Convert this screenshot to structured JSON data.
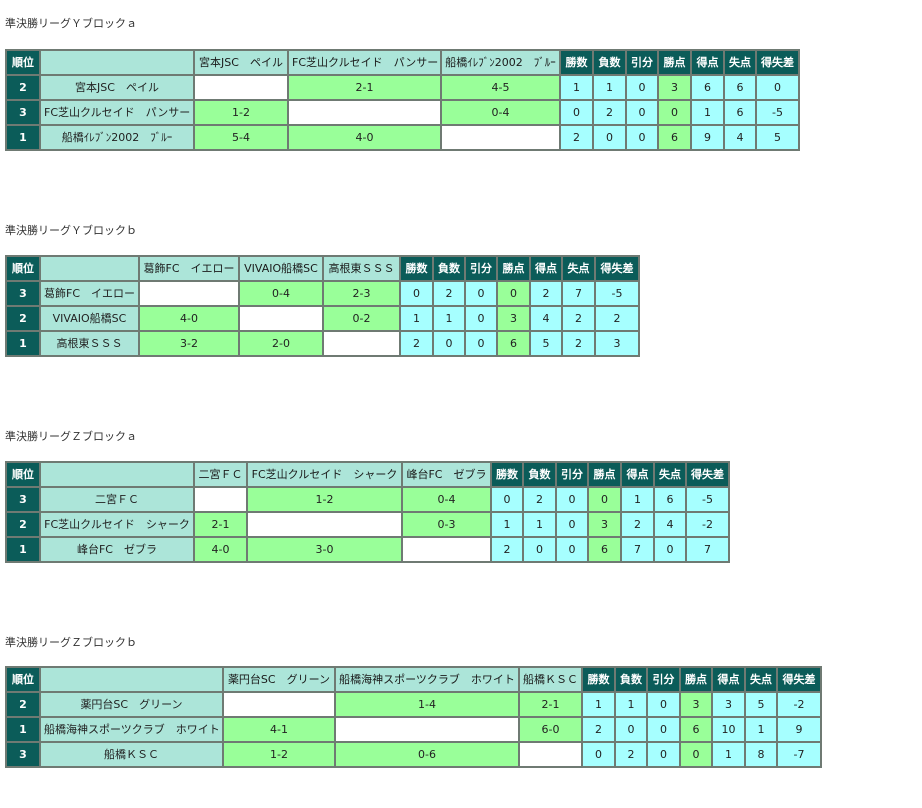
{
  "stat_headers": [
    "勝数",
    "負数",
    "引分",
    "勝点",
    "得点",
    "失点",
    "得失差"
  ],
  "rank_header": "順位",
  "blocks": [
    {
      "title": "準決勝リーグＹブロックａ",
      "teams": [
        "宮本JSC　ペイル",
        "FC芝山クルセイド　パンサー",
        "船橋ｲﾚﾌﾞﾝ2002　ﾌﾞﾙｰ"
      ],
      "rows": [
        {
          "rank": "2",
          "name": "宮本JSC　ペイル",
          "results": [
            "",
            "2-1",
            "4-5"
          ],
          "stats": [
            "1",
            "1",
            "0",
            "3",
            "6",
            "6",
            "0"
          ]
        },
        {
          "rank": "3",
          "name": "FC芝山クルセイド　パンサー",
          "results": [
            "1-2",
            "",
            "0-4"
          ],
          "stats": [
            "0",
            "2",
            "0",
            "0",
            "1",
            "6",
            "-5"
          ]
        },
        {
          "rank": "1",
          "name": "船橋ｲﾚﾌﾞﾝ2002　ﾌﾞﾙｰ",
          "results": [
            "5-4",
            "4-0",
            ""
          ],
          "stats": [
            "2",
            "0",
            "0",
            "6",
            "9",
            "4",
            "5"
          ]
        }
      ]
    },
    {
      "title": "準決勝リーグＹブロックｂ",
      "teams": [
        "葛飾FC　イエロー",
        "VIVAIO船橋SC",
        "高根東ＳＳＳ"
      ],
      "rows": [
        {
          "rank": "3",
          "name": "葛飾FC　イエロー",
          "results": [
            "",
            "0-4",
            "2-3"
          ],
          "stats": [
            "0",
            "2",
            "0",
            "0",
            "2",
            "7",
            "-5"
          ]
        },
        {
          "rank": "2",
          "name": "VIVAIO船橋SC",
          "results": [
            "4-0",
            "",
            "0-2"
          ],
          "stats": [
            "1",
            "1",
            "0",
            "3",
            "4",
            "2",
            "2"
          ]
        },
        {
          "rank": "1",
          "name": "高根東ＳＳＳ",
          "results": [
            "3-2",
            "2-0",
            ""
          ],
          "stats": [
            "2",
            "0",
            "0",
            "6",
            "5",
            "2",
            "3"
          ]
        }
      ]
    },
    {
      "title": "準決勝リーグＺブロックａ",
      "teams": [
        "二宮ＦＣ",
        "FC芝山クルセイド　シャーク",
        "峰台FC　ゼブラ"
      ],
      "rows": [
        {
          "rank": "3",
          "name": "二宮ＦＣ",
          "results": [
            "",
            "1-2",
            "0-4"
          ],
          "stats": [
            "0",
            "2",
            "0",
            "0",
            "1",
            "6",
            "-5"
          ]
        },
        {
          "rank": "2",
          "name": "FC芝山クルセイド　シャーク",
          "results": [
            "2-1",
            "",
            "0-3"
          ],
          "stats": [
            "1",
            "1",
            "0",
            "3",
            "2",
            "4",
            "-2"
          ]
        },
        {
          "rank": "1",
          "name": "峰台FC　ゼブラ",
          "results": [
            "4-0",
            "3-0",
            ""
          ],
          "stats": [
            "2",
            "0",
            "0",
            "6",
            "7",
            "0",
            "7"
          ]
        }
      ]
    },
    {
      "title": "準決勝リーグＺブロックｂ",
      "teams": [
        "薬円台SC　グリーン",
        "船橋海神スポーツクラブ　ホワイト",
        "船橋ＫＳＣ"
      ],
      "rows": [
        {
          "rank": "2",
          "name": "薬円台SC　グリーン",
          "results": [
            "",
            "1-4",
            "2-1"
          ],
          "stats": [
            "1",
            "1",
            "0",
            "3",
            "3",
            "5",
            "-2"
          ]
        },
        {
          "rank": "1",
          "name": "船橋海神スポーツクラブ　ホワイト",
          "results": [
            "4-1",
            "",
            "6-0"
          ],
          "stats": [
            "2",
            "0",
            "0",
            "6",
            "10",
            "1",
            "9"
          ]
        },
        {
          "rank": "3",
          "name": "船橋ＫＳＣ",
          "results": [
            "1-2",
            "0-6",
            ""
          ],
          "stats": [
            "0",
            "2",
            "0",
            "0",
            "1",
            "8",
            "-7"
          ]
        }
      ]
    }
  ]
}
